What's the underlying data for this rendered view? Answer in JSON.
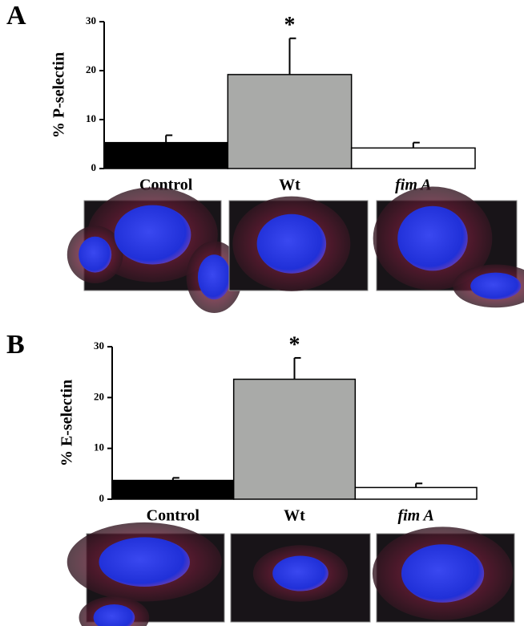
{
  "chart_data": [
    {
      "type": "bar",
      "panel": "A",
      "ylabel": "% P-selectin",
      "categories": [
        "Control",
        "Wt",
        "fim A"
      ],
      "values": [
        5.3,
        19.2,
        4.2
      ],
      "errors": [
        1.5,
        7.4,
        1.1
      ],
      "colors": [
        "#000000",
        "#a9aaa8",
        "#ffffff"
      ],
      "ylim": [
        0,
        30
      ],
      "yticks": [
        0,
        10,
        20,
        30
      ],
      "grid": false,
      "annotations": [
        {
          "text": "*",
          "x": "Wt"
        }
      ]
    },
    {
      "type": "bar",
      "panel": "B",
      "ylabel": "% E-selectin",
      "categories": [
        "Control",
        "Wt",
        "fim A"
      ],
      "values": [
        3.7,
        23.6,
        2.3
      ],
      "errors": [
        0.5,
        4.2,
        0.8
      ],
      "colors": [
        "#000000",
        "#a9aaa8",
        "#ffffff"
      ],
      "ylim": [
        0,
        30
      ],
      "yticks": [
        0,
        10,
        20,
        30
      ],
      "grid": false,
      "annotations": [
        {
          "text": "*",
          "x": "Wt"
        }
      ]
    }
  ]
}
